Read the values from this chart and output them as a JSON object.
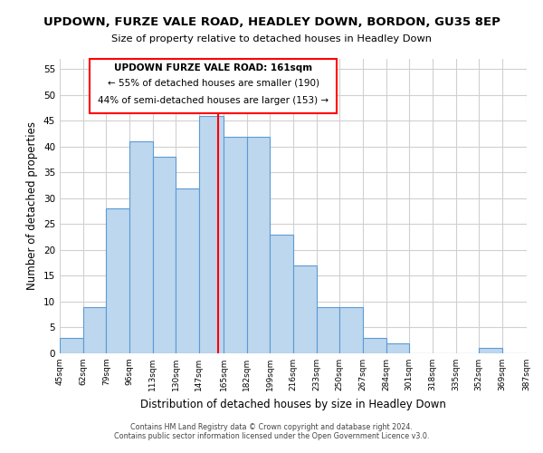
{
  "title": "UPDOWN, FURZE VALE ROAD, HEADLEY DOWN, BORDON, GU35 8EP",
  "subtitle": "Size of property relative to detached houses in Headley Down",
  "xlabel": "Distribution of detached houses by size in Headley Down",
  "ylabel": "Number of detached properties",
  "bar_edges": [
    45,
    62,
    79,
    96,
    113,
    130,
    147,
    165,
    182,
    199,
    216,
    233,
    250,
    267,
    284,
    301,
    318,
    335,
    352,
    369,
    387
  ],
  "bar_heights": [
    3,
    9,
    28,
    41,
    38,
    32,
    46,
    42,
    42,
    23,
    17,
    9,
    9,
    3,
    2,
    0,
    0,
    0,
    1,
    0
  ],
  "bar_color": "#bdd7ee",
  "bar_edge_color": "#5b9bd5",
  "tick_labels": [
    "45sqm",
    "62sqm",
    "79sqm",
    "96sqm",
    "113sqm",
    "130sqm",
    "147sqm",
    "165sqm",
    "182sqm",
    "199sqm",
    "216sqm",
    "233sqm",
    "250sqm",
    "267sqm",
    "284sqm",
    "301sqm",
    "318sqm",
    "335sqm",
    "352sqm",
    "369sqm",
    "387sqm"
  ],
  "vline_x": 161,
  "vline_color": "#ff0000",
  "annotation_line1": "UPDOWN FURZE VALE ROAD: 161sqm",
  "annotation_line2": "← 55% of detached houses are smaller (190)",
  "annotation_line3": "44% of semi-detached houses are larger (153) →",
  "ylim": [
    0,
    57
  ],
  "yticks": [
    0,
    5,
    10,
    15,
    20,
    25,
    30,
    35,
    40,
    45,
    50,
    55
  ],
  "footer1": "Contains HM Land Registry data © Crown copyright and database right 2024.",
  "footer2": "Contains public sector information licensed under the Open Government Licence v3.0.",
  "bg_color": "#ffffff",
  "grid_color": "#d0d0d0"
}
